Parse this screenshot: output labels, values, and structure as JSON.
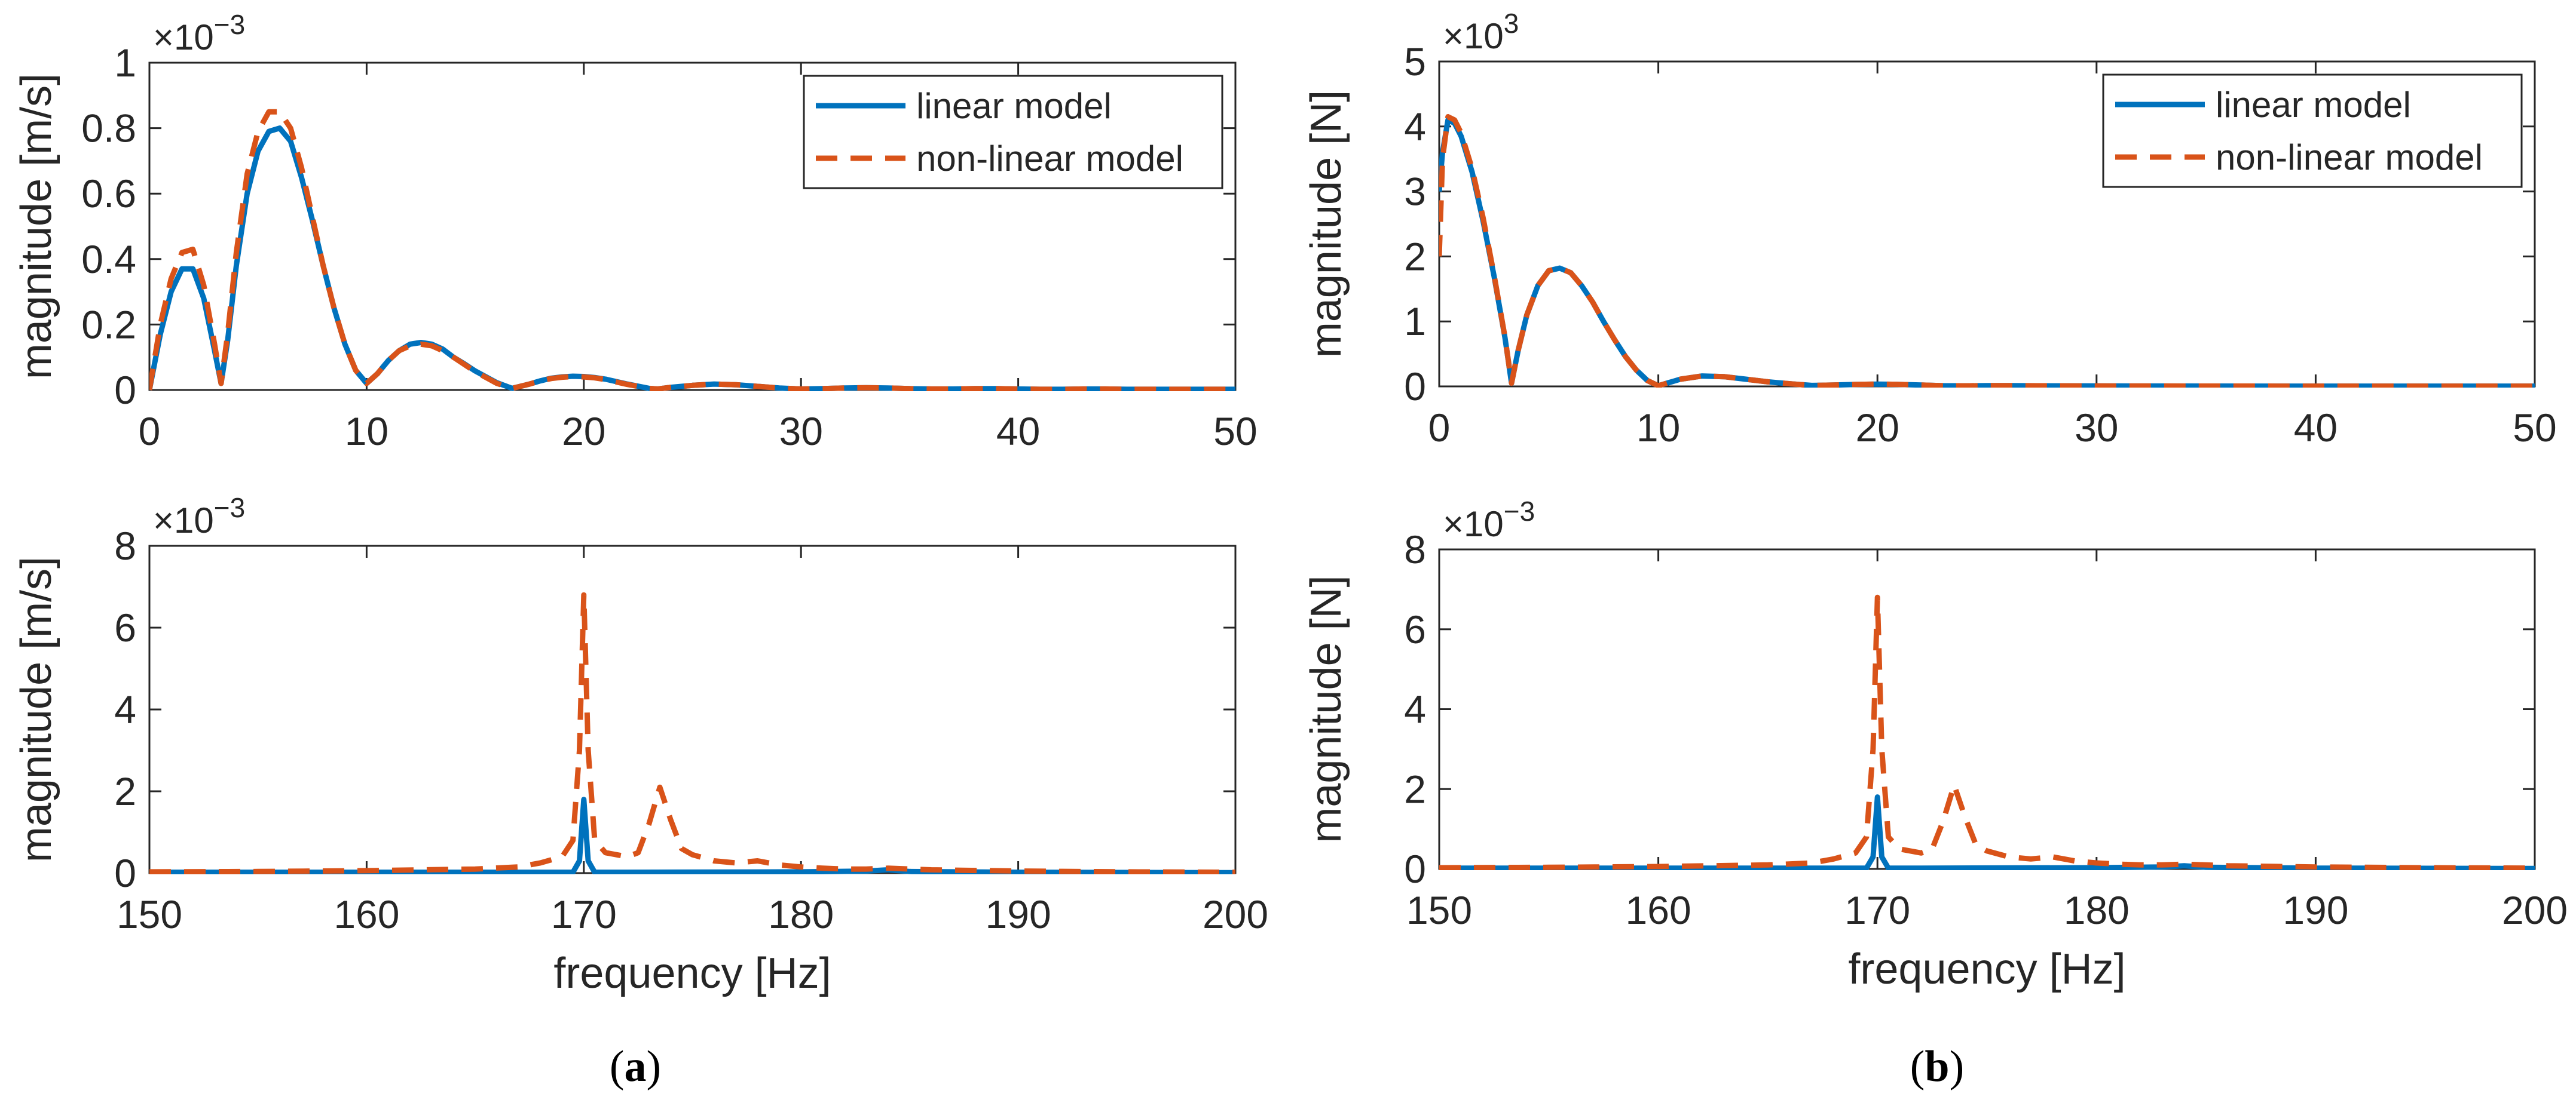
{
  "chart_data": [
    {
      "type": "line",
      "panel": "a-top",
      "xlabel": "",
      "ylabel": "magnitude [m/s]",
      "exponent": "−3",
      "xlim": [
        0,
        50
      ],
      "ylim": [
        0,
        1
      ],
      "xticks": [
        0,
        10,
        20,
        30,
        40,
        50
      ],
      "yticks": [
        0,
        0.2,
        0.4,
        0.6,
        0.8,
        1
      ],
      "ytick_labels": [
        "0",
        "0.2",
        "0.4",
        "0.6",
        "0.8",
        "1"
      ],
      "legend": {
        "position": "top-right",
        "entries": [
          "linear model",
          "non-linear model"
        ]
      },
      "series": [
        {
          "name": "linear model",
          "style": "solid",
          "color": "#0072BD",
          "x": [
            0,
            0.5,
            1,
            1.5,
            2,
            2.5,
            3,
            3.3,
            3.6,
            4,
            4.5,
            5,
            5.5,
            6,
            6.5,
            7,
            7.5,
            8,
            8.5,
            9,
            9.5,
            10,
            10.5,
            11,
            11.5,
            12,
            12.5,
            13,
            13.5,
            14,
            14.5,
            15,
            15.5,
            16,
            16.7,
            17.5,
            18,
            18.5,
            19,
            19.5,
            20,
            20.5,
            21,
            22,
            23,
            23.4,
            24,
            25,
            26,
            27,
            28,
            29,
            30,
            31,
            32,
            33,
            34,
            35,
            36,
            37,
            38,
            39,
            40,
            41,
            42,
            43,
            44,
            45,
            46,
            47,
            48,
            49,
            50
          ],
          "y": [
            0,
            0.17,
            0.3,
            0.37,
            0.37,
            0.28,
            0.12,
            0.02,
            0.15,
            0.38,
            0.6,
            0.73,
            0.79,
            0.8,
            0.76,
            0.65,
            0.52,
            0.38,
            0.25,
            0.14,
            0.06,
            0.02,
            0.05,
            0.09,
            0.12,
            0.14,
            0.145,
            0.14,
            0.125,
            0.1,
            0.08,
            0.058,
            0.04,
            0.022,
            0.005,
            0.018,
            0.028,
            0.036,
            0.04,
            0.042,
            0.041,
            0.038,
            0.033,
            0.018,
            0.005,
            0.003,
            0.008,
            0.014,
            0.018,
            0.016,
            0.011,
            0.006,
            0.003,
            0.004,
            0.006,
            0.007,
            0.006,
            0.004,
            0.003,
            0.003,
            0.004,
            0.004,
            0.003,
            0.002,
            0.002,
            0.003,
            0.003,
            0.002,
            0.002,
            0.002,
            0.002,
            0.002,
            0.002
          ]
        },
        {
          "name": "non-linear model",
          "style": "dashed",
          "color": "#D95319",
          "x": [
            0,
            0.5,
            1,
            1.5,
            2,
            2.5,
            3,
            3.3,
            3.6,
            4,
            4.5,
            5,
            5.5,
            6,
            6.5,
            7,
            7.5,
            8,
            8.5,
            9,
            9.5,
            10,
            10.5,
            11,
            11.5,
            12,
            12.5,
            13,
            13.5,
            14,
            14.5,
            15,
            15.5,
            16,
            16.7,
            17.5,
            18,
            18.5,
            19,
            19.5,
            20,
            20.5,
            21,
            22,
            23,
            23.4,
            24,
            25,
            26,
            27,
            28,
            29,
            30,
            31,
            32,
            33,
            34,
            35,
            36,
            37,
            38,
            39,
            40,
            41,
            42,
            43,
            44,
            45,
            46,
            47,
            48,
            49,
            50
          ],
          "y": [
            0,
            0.2,
            0.34,
            0.42,
            0.43,
            0.32,
            0.14,
            0.02,
            0.17,
            0.42,
            0.66,
            0.79,
            0.85,
            0.85,
            0.8,
            0.68,
            0.53,
            0.38,
            0.25,
            0.14,
            0.06,
            0.02,
            0.05,
            0.09,
            0.12,
            0.135,
            0.14,
            0.135,
            0.12,
            0.1,
            0.078,
            0.056,
            0.038,
            0.02,
            0.005,
            0.018,
            0.028,
            0.035,
            0.039,
            0.041,
            0.04,
            0.037,
            0.032,
            0.017,
            0.005,
            0.003,
            0.008,
            0.014,
            0.018,
            0.016,
            0.011,
            0.006,
            0.003,
            0.004,
            0.006,
            0.007,
            0.006,
            0.004,
            0.003,
            0.003,
            0.004,
            0.004,
            0.003,
            0.002,
            0.002,
            0.003,
            0.003,
            0.002,
            0.002,
            0.002,
            0.002,
            0.002,
            0.002
          ]
        }
      ]
    },
    {
      "type": "line",
      "panel": "a-bottom",
      "xlabel": "frequency [Hz]",
      "ylabel": "magnitude [m/s]",
      "exponent": "−3",
      "xlim": [
        150,
        200
      ],
      "ylim": [
        0,
        8
      ],
      "xticks": [
        150,
        160,
        170,
        180,
        190,
        200
      ],
      "yticks": [
        0,
        2,
        4,
        6,
        8
      ],
      "ytick_labels": [
        "0",
        "2",
        "4",
        "6",
        "8"
      ],
      "series": [
        {
          "name": "linear model",
          "style": "solid",
          "color": "#0072BD",
          "x": [
            150,
            160,
            168,
            169.5,
            169.8,
            170,
            170.2,
            170.5,
            172,
            180,
            183,
            184,
            185,
            190,
            200
          ],
          "y": [
            0.02,
            0.02,
            0.02,
            0.02,
            0.3,
            1.8,
            0.3,
            0.02,
            0.02,
            0.03,
            0.05,
            0.08,
            0.04,
            0.02,
            0.01
          ]
        },
        {
          "name": "non-linear model",
          "style": "dashed",
          "color": "#D95319",
          "x": [
            150,
            155,
            160,
            165,
            167,
            168,
            169,
            169.5,
            169.8,
            170,
            170.2,
            170.5,
            171,
            172,
            172.5,
            173,
            173.5,
            174,
            174.5,
            175,
            176,
            177,
            178,
            179,
            180,
            181,
            182,
            183,
            184,
            186,
            190,
            195,
            200
          ],
          "y": [
            0.03,
            0.04,
            0.06,
            0.1,
            0.15,
            0.25,
            0.4,
            0.8,
            3,
            6.8,
            3,
            0.8,
            0.5,
            0.4,
            0.5,
            1.2,
            2.1,
            1.3,
            0.6,
            0.45,
            0.3,
            0.25,
            0.3,
            0.2,
            0.15,
            0.12,
            0.1,
            0.1,
            0.12,
            0.08,
            0.05,
            0.03,
            0.02
          ]
        }
      ]
    },
    {
      "type": "line",
      "panel": "b-top",
      "xlabel": "",
      "ylabel": "magnitude [N]",
      "exponent": "3",
      "xlim": [
        0,
        50
      ],
      "ylim": [
        0,
        5
      ],
      "xticks": [
        0,
        10,
        20,
        30,
        40,
        50
      ],
      "yticks": [
        0,
        1,
        2,
        3,
        4,
        5
      ],
      "ytick_labels": [
        "0",
        "1",
        "2",
        "3",
        "4",
        "5"
      ],
      "legend": {
        "position": "top-right",
        "entries": [
          "linear model",
          "non-linear model"
        ]
      },
      "series": [
        {
          "name": "linear model",
          "style": "solid",
          "color": "#0072BD",
          "x": [
            0,
            0.15,
            0.4,
            0.7,
            1,
            1.5,
            2,
            2.5,
            3,
            3.3,
            3.6,
            4,
            4.5,
            5,
            5.5,
            6,
            6.5,
            7,
            7.5,
            8,
            8.5,
            9,
            9.5,
            10,
            10.5,
            11,
            12,
            13,
            14,
            15,
            16,
            17,
            18,
            19,
            20,
            21,
            22,
            23,
            24,
            25,
            26,
            28,
            30,
            35,
            40,
            45,
            50
          ],
          "y": [
            3.0,
            3.6,
            4.1,
            4.05,
            3.85,
            3.3,
            2.55,
            1.7,
            0.75,
            0.05,
            0.55,
            1.1,
            1.55,
            1.78,
            1.82,
            1.75,
            1.55,
            1.3,
            1.0,
            0.72,
            0.46,
            0.25,
            0.09,
            0.01,
            0.06,
            0.11,
            0.16,
            0.15,
            0.11,
            0.07,
            0.04,
            0.015,
            0.02,
            0.03,
            0.035,
            0.03,
            0.02,
            0.01,
            0.008,
            0.012,
            0.012,
            0.008,
            0.006,
            0.005,
            0.004,
            0.004,
            0.004
          ]
        },
        {
          "name": "non-linear model",
          "style": "dashed",
          "color": "#D95319",
          "x": [
            0,
            0.15,
            0.4,
            0.7,
            1,
            1.5,
            2,
            2.5,
            3,
            3.3,
            3.6,
            4,
            4.5,
            5,
            5.5,
            6,
            6.5,
            7,
            7.5,
            8,
            8.5,
            9,
            9.5,
            10,
            10.5,
            11,
            12,
            13,
            14,
            15,
            16,
            17,
            18,
            19,
            20,
            21,
            22,
            23,
            24,
            25,
            26,
            28,
            30,
            35,
            40,
            45,
            50
          ],
          "y": [
            2.0,
            3.5,
            4.15,
            4.1,
            3.9,
            3.35,
            2.6,
            1.72,
            0.76,
            0.05,
            0.55,
            1.1,
            1.55,
            1.78,
            1.82,
            1.75,
            1.55,
            1.3,
            1.0,
            0.72,
            0.46,
            0.25,
            0.09,
            0.01,
            0.06,
            0.11,
            0.16,
            0.15,
            0.11,
            0.07,
            0.04,
            0.015,
            0.02,
            0.03,
            0.035,
            0.03,
            0.02,
            0.01,
            0.008,
            0.012,
            0.012,
            0.008,
            0.006,
            0.005,
            0.004,
            0.004,
            0.004
          ]
        }
      ]
    },
    {
      "type": "line",
      "panel": "b-bottom",
      "xlabel": "frequency [Hz]",
      "ylabel": "magnitude [N]",
      "exponent": "−3",
      "xlim": [
        150,
        200
      ],
      "ylim": [
        0,
        8
      ],
      "xticks": [
        150,
        160,
        170,
        180,
        190,
        200
      ],
      "yticks": [
        0,
        2,
        4,
        6,
        8
      ],
      "ytick_labels": [
        "0",
        "2",
        "4",
        "6",
        "8"
      ],
      "series": [
        {
          "name": "linear model",
          "style": "solid",
          "color": "#0072BD",
          "x": [
            150,
            160,
            168,
            169.5,
            169.8,
            170,
            170.2,
            170.5,
            172,
            180,
            183,
            184,
            185,
            190,
            200
          ],
          "y": [
            0.02,
            0.02,
            0.02,
            0.02,
            0.3,
            1.8,
            0.3,
            0.02,
            0.02,
            0.03,
            0.05,
            0.08,
            0.04,
            0.02,
            0.01
          ]
        },
        {
          "name": "non-linear model",
          "style": "dashed",
          "color": "#D95319",
          "x": [
            150,
            155,
            160,
            165,
            167,
            168,
            169,
            169.5,
            169.8,
            170,
            170.2,
            170.5,
            171,
            172,
            172.5,
            173,
            173.5,
            174,
            174.5,
            175,
            176,
            177,
            178,
            179,
            180,
            181,
            182,
            183,
            184,
            186,
            190,
            195,
            200
          ],
          "y": [
            0.03,
            0.04,
            0.06,
            0.1,
            0.15,
            0.25,
            0.4,
            0.8,
            3,
            6.8,
            3,
            0.8,
            0.5,
            0.4,
            0.5,
            1.2,
            2.1,
            1.3,
            0.6,
            0.45,
            0.3,
            0.25,
            0.3,
            0.2,
            0.15,
            0.12,
            0.1,
            0.1,
            0.12,
            0.08,
            0.05,
            0.03,
            0.02
          ]
        }
      ]
    }
  ],
  "panel_labels": [
    {
      "open": "(",
      "letter": "a",
      "close": ")"
    },
    {
      "open": "(",
      "letter": "b",
      "close": ")"
    }
  ],
  "exponent_base": "×10"
}
